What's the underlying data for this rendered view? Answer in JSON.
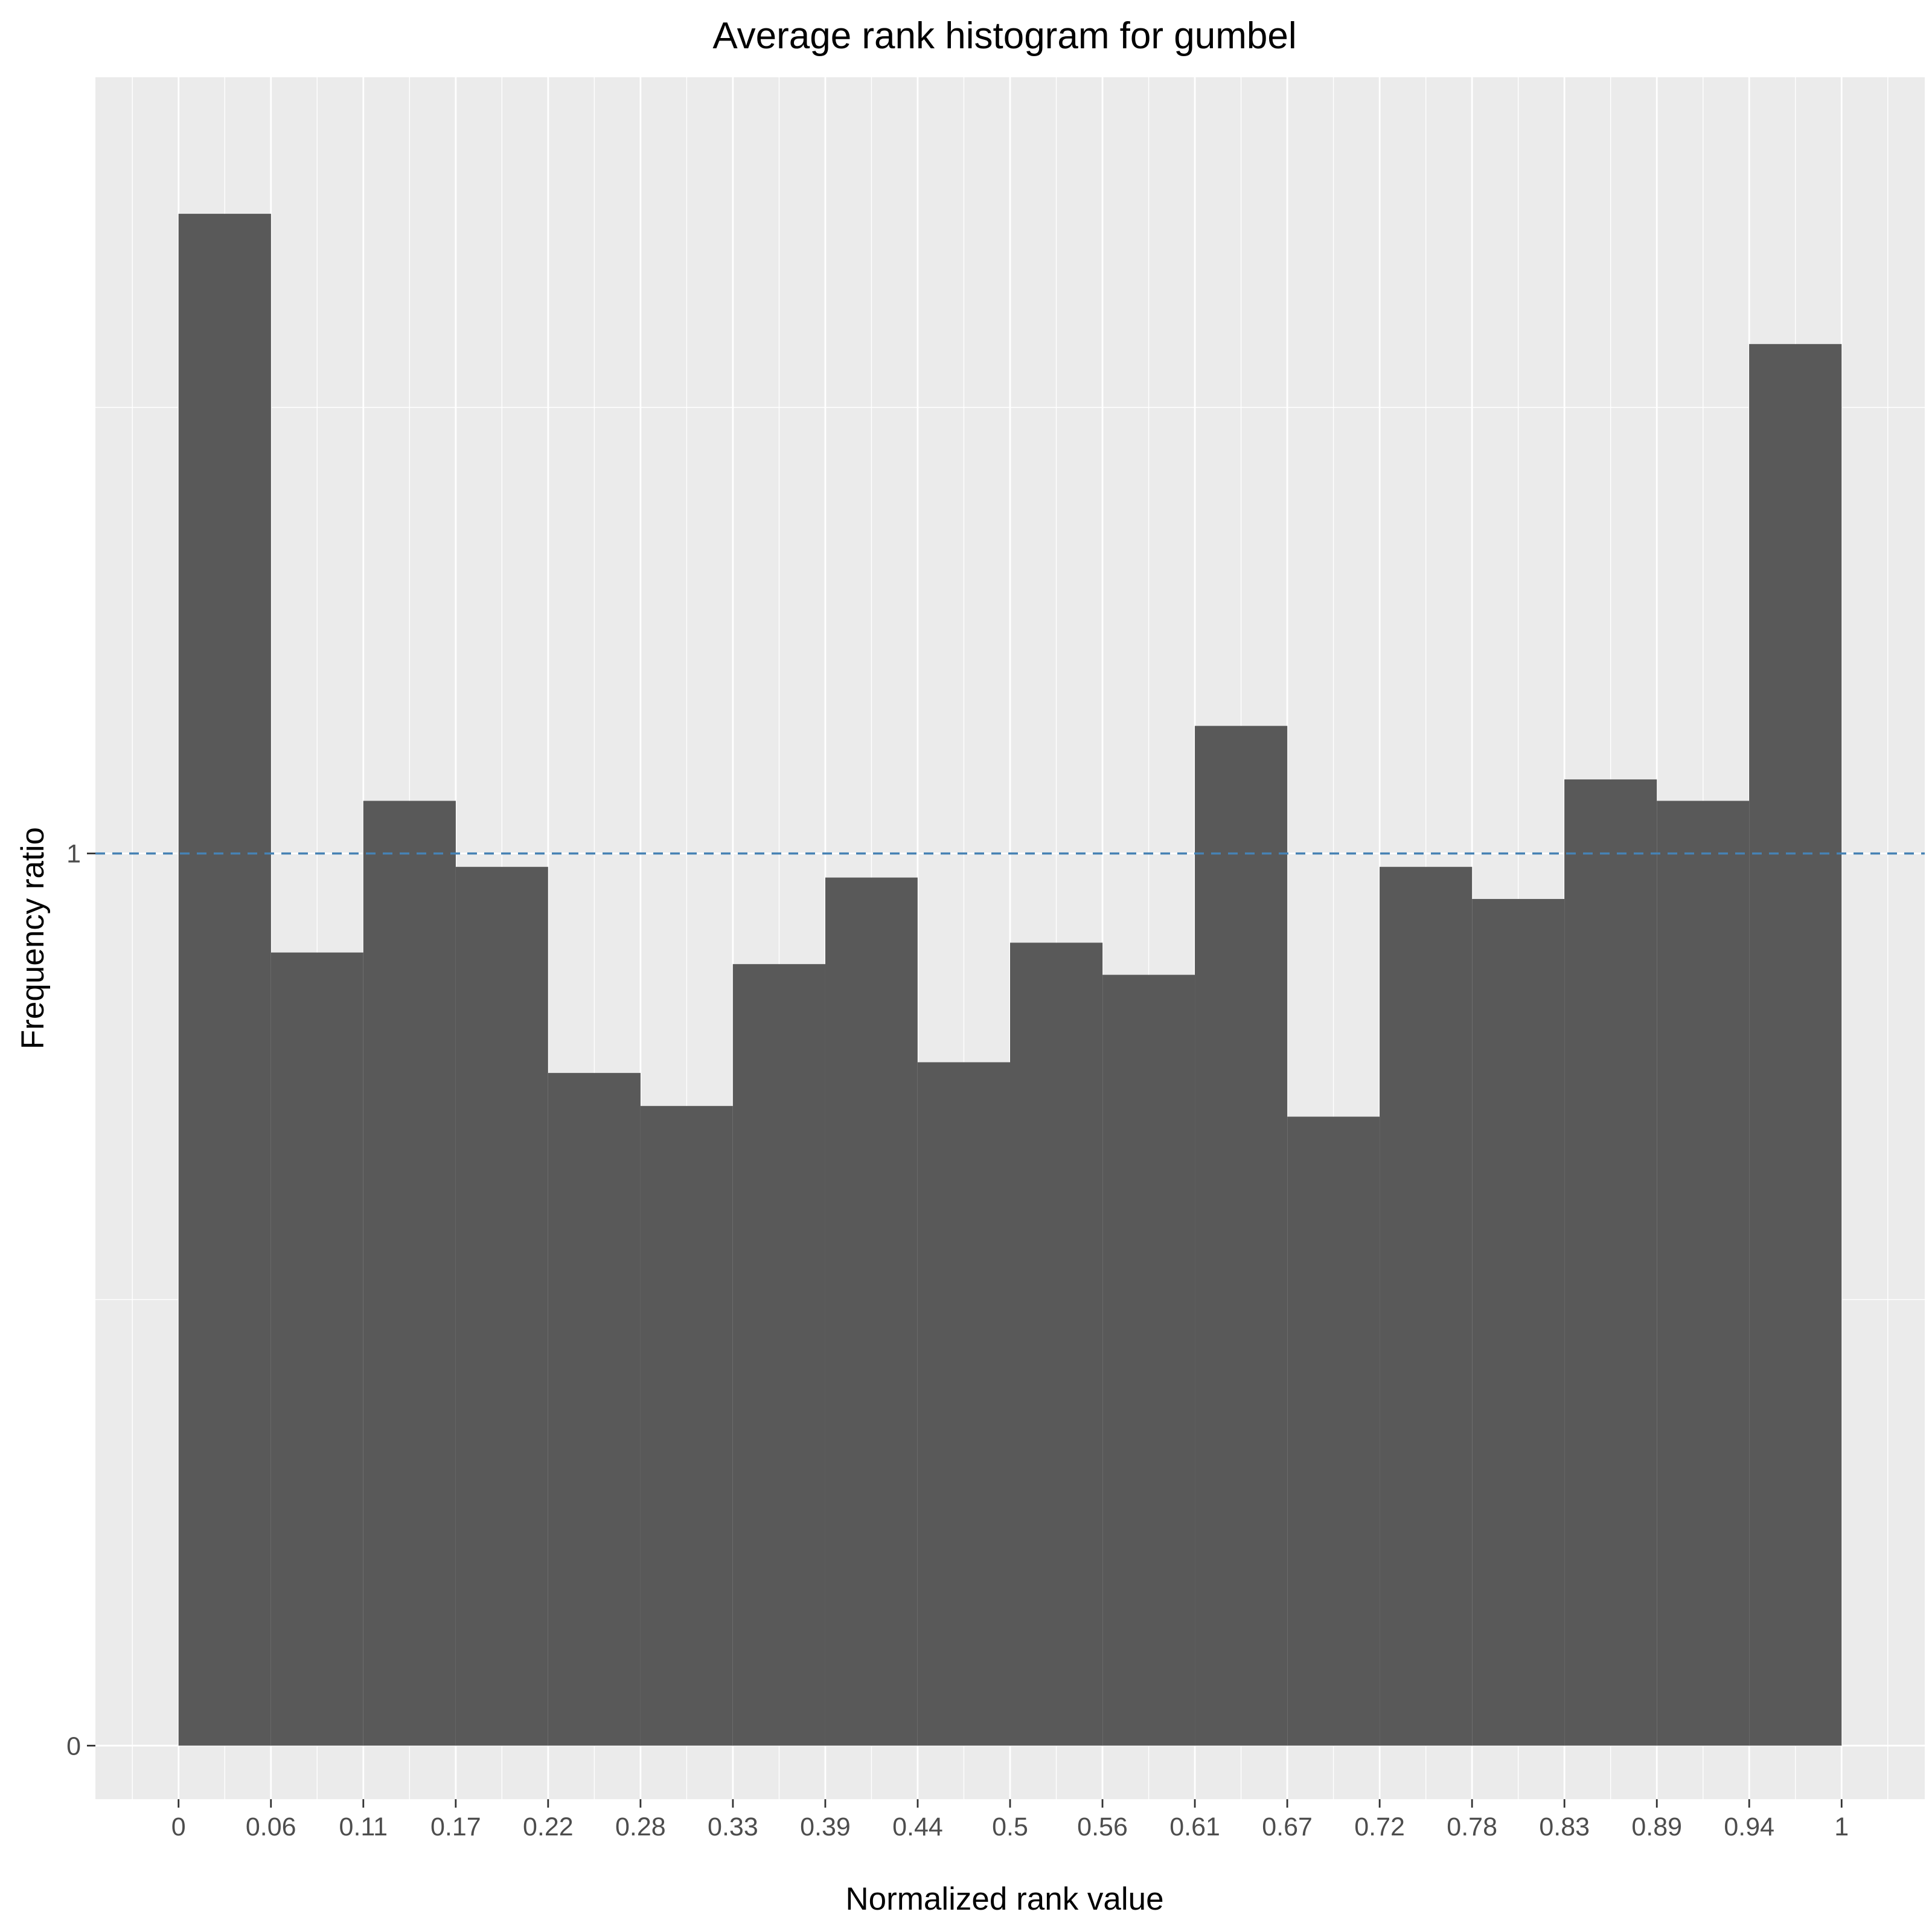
{
  "colors": {
    "panel_bg": "#ebebeb",
    "grid": "#ffffff",
    "bar": "#595959",
    "ref_line": "#4682b4",
    "tick": "#333333"
  },
  "chart_data": {
    "type": "bar",
    "title": "Average rank histogram for gumbel",
    "xlabel": "Normalized rank value",
    "ylabel": "Frequency ratio",
    "x_ticks": [
      "0",
      "0.06",
      "0.11",
      "0.17",
      "0.22",
      "0.28",
      "0.33",
      "0.39",
      "0.44",
      "0.5",
      "0.56",
      "0.61",
      "0.67",
      "0.72",
      "0.78",
      "0.83",
      "0.89",
      "0.94",
      "1"
    ],
    "y_ticks": [
      "0",
      "1"
    ],
    "xlim": [
      -0.05,
      1.05
    ],
    "ylim": [
      -0.06,
      1.87
    ],
    "reference_line": {
      "y": 1,
      "style": "dashed"
    },
    "grid": true,
    "bins": [
      {
        "start": 0.0,
        "end": 0.0556,
        "value": 1.717
      },
      {
        "start": 0.0556,
        "end": 0.1111,
        "value": 0.889
      },
      {
        "start": 0.1111,
        "end": 0.1667,
        "value": 1.059
      },
      {
        "start": 0.1667,
        "end": 0.2222,
        "value": 0.985
      },
      {
        "start": 0.2222,
        "end": 0.2778,
        "value": 0.754
      },
      {
        "start": 0.2778,
        "end": 0.3333,
        "value": 0.717
      },
      {
        "start": 0.3333,
        "end": 0.3889,
        "value": 0.876
      },
      {
        "start": 0.3889,
        "end": 0.4444,
        "value": 0.973
      },
      {
        "start": 0.4444,
        "end": 0.5,
        "value": 0.766
      },
      {
        "start": 0.5,
        "end": 0.5556,
        "value": 0.9
      },
      {
        "start": 0.5556,
        "end": 0.6111,
        "value": 0.864
      },
      {
        "start": 0.6111,
        "end": 0.6667,
        "value": 1.143
      },
      {
        "start": 0.6667,
        "end": 0.7222,
        "value": 0.705
      },
      {
        "start": 0.7222,
        "end": 0.7778,
        "value": 0.985
      },
      {
        "start": 0.7778,
        "end": 0.8333,
        "value": 0.949
      },
      {
        "start": 0.8333,
        "end": 0.8889,
        "value": 1.083
      },
      {
        "start": 0.8889,
        "end": 0.9444,
        "value": 1.059
      },
      {
        "start": 0.9444,
        "end": 1.0,
        "value": 1.571
      }
    ]
  }
}
